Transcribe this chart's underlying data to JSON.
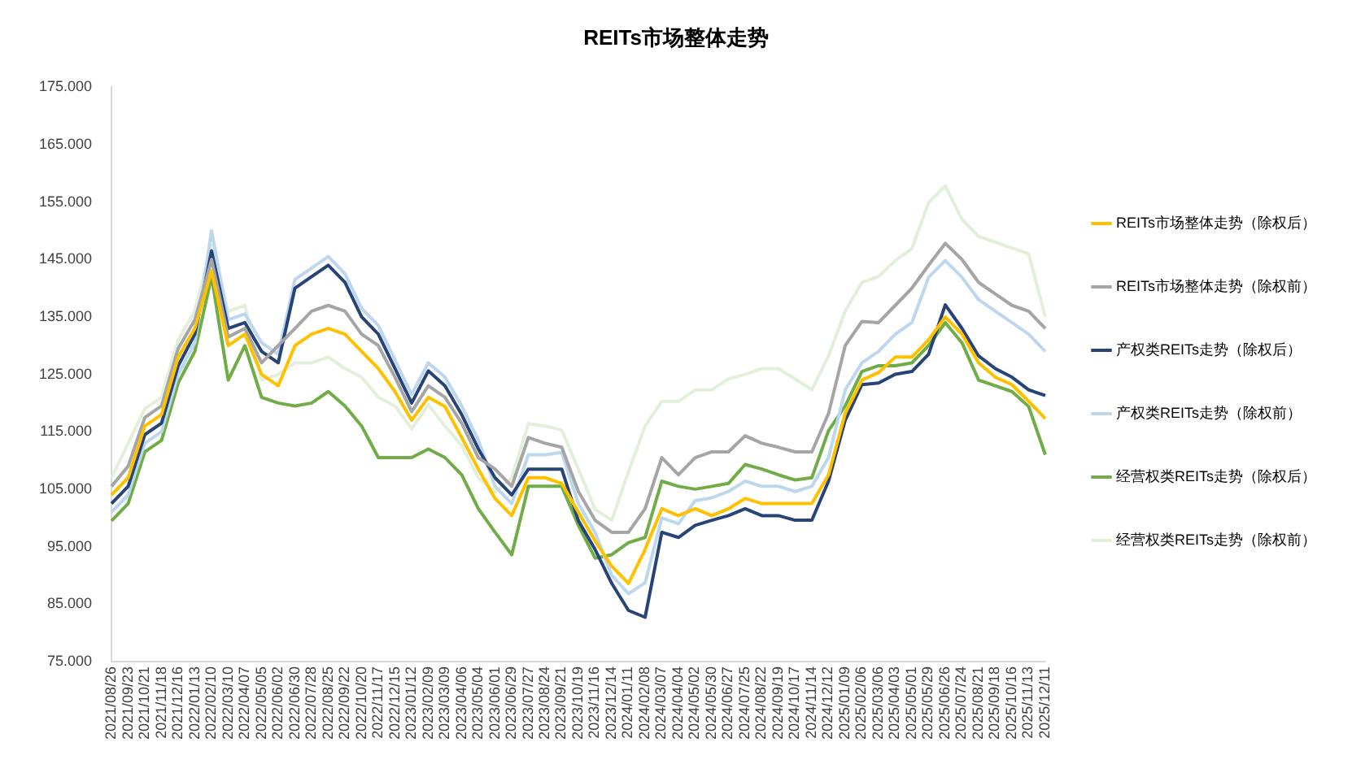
{
  "chart_data": {
    "type": "line",
    "title": "REITs市场整体走势",
    "categories": [
      "2021/08/26",
      "2021/09/23",
      "2021/10/21",
      "2021/11/18",
      "2021/12/16",
      "2022/01/13",
      "2022/02/10",
      "2022/03/10",
      "2022/04/07",
      "2022/05/05",
      "2022/06/02",
      "2022/06/30",
      "2022/07/28",
      "2022/08/25",
      "2022/09/22",
      "2022/10/20",
      "2022/11/17",
      "2022/12/15",
      "2023/01/12",
      "2023/02/09",
      "2023/03/09",
      "2023/04/06",
      "2023/05/04",
      "2023/06/01",
      "2023/06/29",
      "2023/07/27",
      "2023/08/24",
      "2023/09/21",
      "2023/10/19",
      "2023/11/16",
      "2023/12/14",
      "2024/01/11",
      "2024/02/08",
      "2024/03/07",
      "2024/04/04",
      "2024/05/02",
      "2024/05/30",
      "2024/06/27",
      "2024/07/25",
      "2024/08/22",
      "2024/09/19",
      "2024/10/17",
      "2024/11/14",
      "2024/12/12",
      "2025/01/09",
      "2025/02/06",
      "2025/03/06",
      "2025/04/03",
      "2025/05/01",
      "2025/05/29",
      "2025/06/26",
      "2025/07/24",
      "2025/08/21",
      "2025/09/18",
      "2025/10/16",
      "2025/11/13",
      "2025/12/11"
    ],
    "series": [
      {
        "name": "REITs市场整体走势（除权后）",
        "color": "#ffc000",
        "values": [
          104,
          107,
          116,
          118,
          128,
          133,
          143,
          130,
          132,
          125,
          123,
          130,
          132,
          133,
          132,
          129,
          126,
          122,
          117,
          121,
          119.4,
          114,
          108.5,
          103.4,
          100.4,
          107,
          107,
          106,
          101,
          96,
          91.6,
          88.6,
          94.5,
          101.6,
          100.4,
          101.6,
          100.4,
          101.6,
          103.4,
          102.5,
          102.5,
          102.5,
          102.5,
          107.5,
          118.2,
          124,
          125.3,
          128,
          128,
          131,
          135,
          132,
          127,
          124.5,
          123.2,
          120.3,
          117.3
        ]
      },
      {
        "name": "REITs市场整体走势（除权前）",
        "color": "#a5a5a5",
        "values": [
          105.5,
          109,
          117.5,
          119.5,
          129.5,
          134.5,
          145,
          131.5,
          133,
          127,
          130,
          133,
          136,
          137,
          136,
          132,
          130,
          124.5,
          118.5,
          123,
          121,
          116.5,
          110.5,
          108.5,
          105.5,
          114,
          113,
          112.3,
          104.6,
          99.6,
          97.5,
          97.5,
          101.6,
          110.5,
          107.5,
          110.5,
          111.5,
          111.5,
          114.3,
          113,
          112.3,
          111.5,
          111.5,
          118.2,
          130,
          134.2,
          134,
          137,
          140,
          144,
          147.8,
          145,
          141,
          139,
          137,
          136,
          133
        ]
      },
      {
        "name": "产权类REITs走势（除权后）",
        "color": "#264478",
        "values": [
          102.5,
          105.5,
          114.5,
          116.5,
          126.5,
          132,
          146.5,
          133,
          134,
          129,
          127,
          140,
          142,
          144,
          141,
          135,
          132,
          126,
          120,
          125.6,
          123,
          118,
          112,
          107,
          104,
          108.5,
          108.5,
          108.5,
          99.5,
          94.5,
          88.6,
          83.9,
          82.7,
          97.5,
          96.6,
          98.7,
          99.6,
          100.4,
          101.6,
          100.4,
          100.4,
          99.6,
          99.6,
          106.4,
          117,
          123.2,
          123.5,
          125,
          125.5,
          128.5,
          137.1,
          133,
          128.2,
          126,
          124.5,
          122.3,
          121.3
        ]
      },
      {
        "name": "产权类REITs走势（除权前）",
        "color": "#bdd7ee",
        "values": [
          101,
          104,
          113,
          115,
          125,
          130.5,
          150,
          134.5,
          135.5,
          130.5,
          128.5,
          141.5,
          143.5,
          145.5,
          142.5,
          136.5,
          133.5,
          127.5,
          121.5,
          127,
          124.5,
          119.5,
          113.5,
          105.5,
          102.5,
          111,
          111,
          111.4,
          102.5,
          97.5,
          90,
          86.8,
          88.7,
          100,
          99,
          103,
          103.5,
          104.6,
          106.4,
          105.5,
          105.5,
          104.6,
          105.5,
          110.5,
          122.3,
          127,
          129,
          132,
          134,
          141.9,
          144.8,
          141.9,
          138,
          136,
          134,
          132,
          129
        ]
      },
      {
        "name": "经营权类REITs走势（除权后）",
        "color": "#70ad47",
        "values": [
          99.5,
          102.5,
          111.5,
          113.5,
          123.5,
          129,
          142,
          124,
          130,
          121,
          120,
          119.5,
          120,
          122,
          119.5,
          116,
          110.5,
          110.5,
          110.5,
          112,
          110.5,
          107.5,
          101.6,
          97.5,
          93.6,
          105.5,
          105.5,
          105.5,
          98.7,
          93,
          93.6,
          95.7,
          96.6,
          106.4,
          105.5,
          105,
          105.5,
          106,
          109.3,
          108.5,
          107.5,
          106.6,
          107,
          115.2,
          119.5,
          125.5,
          126.5,
          126.5,
          127,
          130,
          134,
          130.5,
          124,
          123,
          122,
          119.4,
          111
        ]
      },
      {
        "name": "经营权类REITs走势（除权前）",
        "color": "#e2efda",
        "values": [
          107,
          113,
          119,
          121,
          131,
          136,
          147.5,
          136,
          137,
          124,
          125,
          127,
          127,
          128,
          126,
          124.5,
          121,
          119.5,
          115.5,
          119.7,
          116,
          112.6,
          107,
          104.5,
          107,
          116.4,
          116,
          115.3,
          108.5,
          101.5,
          99.6,
          108,
          116,
          120.3,
          120.3,
          122.3,
          122.3,
          124.2,
          125,
          126,
          126,
          124.2,
          122.3,
          128.2,
          136,
          141,
          142,
          144.8,
          146.9,
          154.9,
          157.8,
          152,
          149,
          148,
          147,
          146,
          135
        ]
      }
    ],
    "ylim": [
      75,
      175
    ],
    "yticks": [
      {
        "value": 75,
        "label": "75.000"
      },
      {
        "value": 85,
        "label": "85.000"
      },
      {
        "value": 95,
        "label": "95.000"
      },
      {
        "value": 105,
        "label": "105.000"
      },
      {
        "value": 115,
        "label": "115.000"
      },
      {
        "value": 125,
        "label": "125.000"
      },
      {
        "value": 135,
        "label": "135.000"
      },
      {
        "value": 145,
        "label": "145.000"
      },
      {
        "value": 155,
        "label": "155.000"
      },
      {
        "value": 165,
        "label": "165.000"
      },
      {
        "value": 175,
        "label": "175.000"
      }
    ],
    "grid": false,
    "legend": "right",
    "marker": "none",
    "line_style": "solid"
  }
}
